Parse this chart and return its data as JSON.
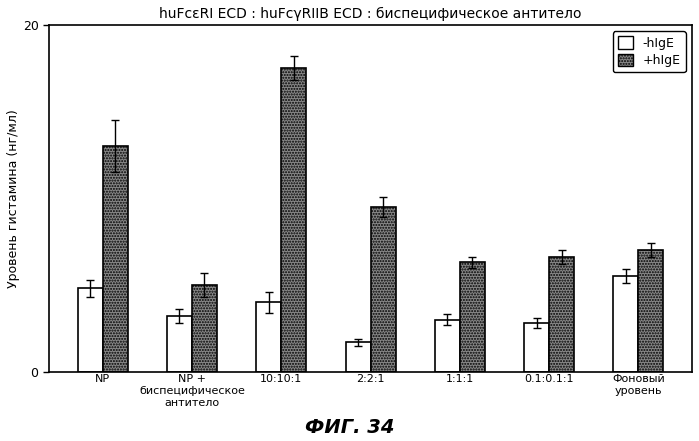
{
  "title": "huFcεRI ECD : huFcγRIIB ECD : биспецифическое антитело",
  "ylabel": "Уровень гистамина (нг/мл)",
  "caption": "ФИГ. 34",
  "categories": [
    "NP",
    "NP +\nбиспецифическое\nантитело",
    "10:10:1",
    "2:2:1",
    "1:1:1",
    "0.1:0.1:1",
    "Фоновый\nуровень"
  ],
  "minus_hIgE": [
    4.8,
    3.2,
    4.0,
    1.7,
    3.0,
    2.8,
    5.5
  ],
  "plus_hIgE": [
    13.0,
    5.0,
    17.5,
    9.5,
    6.3,
    6.6,
    7.0
  ],
  "minus_hIgE_err": [
    0.5,
    0.4,
    0.6,
    0.2,
    0.3,
    0.3,
    0.4
  ],
  "plus_hIgE_err": [
    1.5,
    0.7,
    0.7,
    0.6,
    0.3,
    0.4,
    0.4
  ],
  "ylim": [
    0,
    20
  ],
  "ytick_labels": [
    "0",
    "20"
  ],
  "ytick_positions": [
    0,
    20
  ],
  "bar_width": 0.28,
  "minus_color": "#ffffff",
  "plus_color": "#888888",
  "edge_color": "#000000",
  "background_color": "#ffffff",
  "legend_minus": "-hIgE",
  "legend_plus": "+hIgE",
  "title_fontsize": 10,
  "ylabel_fontsize": 9,
  "tick_fontsize": 9,
  "xtick_fontsize": 8,
  "legend_fontsize": 9,
  "caption_fontsize": 14
}
